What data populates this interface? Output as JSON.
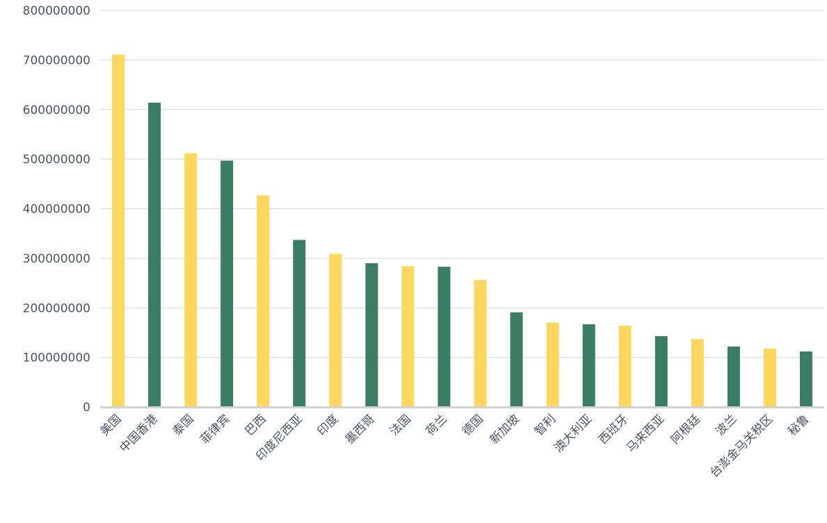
{
  "chart_data": {
    "type": "bar",
    "categories": [
      "美国",
      "中国香港",
      "泰国",
      "菲律宾",
      "巴西",
      "印度尼西亚",
      "印度",
      "墨西哥",
      "法国",
      "荷兰",
      "德国",
      "新加坡",
      "智利",
      "澳大利亚",
      "西班牙",
      "马来西亚",
      "阿根廷",
      "波兰",
      "台澎金马关税区",
      "秘鲁"
    ],
    "values": [
      711000000,
      614000000,
      512000000,
      497000000,
      427000000,
      337000000,
      309000000,
      290000000,
      284000000,
      283000000,
      256000000,
      191000000,
      170000000,
      167000000,
      164000000,
      143000000,
      137000000,
      122000000,
      118000000,
      112000000
    ],
    "bar_colors": [
      "#ffd75e",
      "#3a7d64"
    ],
    "ylim": [
      0,
      800000000
    ],
    "yticks": [
      "0",
      "100000000",
      "200000000",
      "300000000",
      "400000000",
      "500000000",
      "600000000",
      "700000000",
      "800000000"
    ],
    "grid": true,
    "title": "",
    "xlabel": "",
    "ylabel": ""
  }
}
